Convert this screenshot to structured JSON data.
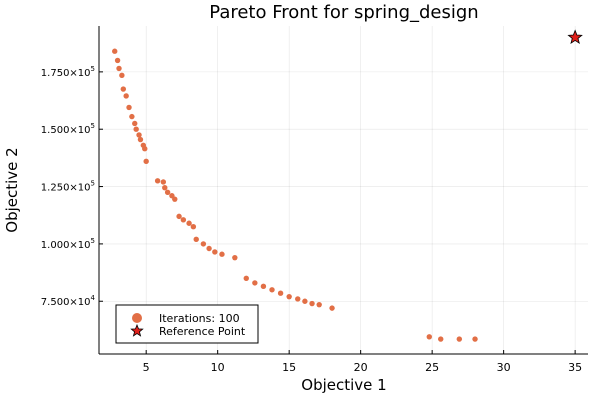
{
  "chart_data": {
    "type": "scatter",
    "title": "Pareto Front for spring_design",
    "xlabel": "Objective 1",
    "ylabel": "Objective 2",
    "xlim": [
      1.7,
      35.9
    ],
    "ylim": [
      52000,
      195000
    ],
    "x_ticks": [
      {
        "value": 5,
        "label": "5"
      },
      {
        "value": 10,
        "label": "10"
      },
      {
        "value": 15,
        "label": "15"
      },
      {
        "value": 20,
        "label": "20"
      },
      {
        "value": 25,
        "label": "25"
      },
      {
        "value": 30,
        "label": "30"
      },
      {
        "value": 35,
        "label": "35"
      }
    ],
    "y_ticks": [
      {
        "value": 75000,
        "mantissa": "7.500×10",
        "exp": "4"
      },
      {
        "value": 100000,
        "mantissa": "1.000×10",
        "exp": "5"
      },
      {
        "value": 125000,
        "mantissa": "1.250×10",
        "exp": "5"
      },
      {
        "value": 150000,
        "mantissa": "1.500×10",
        "exp": "5"
      },
      {
        "value": 175000,
        "mantissa": "1.750×10",
        "exp": "5"
      }
    ],
    "grid": true,
    "legend_position": "bottom-left",
    "series": [
      {
        "name": "Iterations: 100",
        "marker": "circle",
        "color": "#e26f46",
        "points": [
          [
            2.8,
            184000
          ],
          [
            3.0,
            180000
          ],
          [
            3.1,
            176500
          ],
          [
            3.3,
            173500
          ],
          [
            3.4,
            167500
          ],
          [
            3.6,
            164500
          ],
          [
            3.8,
            159500
          ],
          [
            4.0,
            155500
          ],
          [
            4.2,
            152500
          ],
          [
            4.3,
            150000
          ],
          [
            4.5,
            147500
          ],
          [
            4.6,
            145500
          ],
          [
            4.8,
            143000
          ],
          [
            4.9,
            141500
          ],
          [
            5.0,
            136000
          ],
          [
            5.8,
            127500
          ],
          [
            6.2,
            127000
          ],
          [
            6.3,
            124500
          ],
          [
            6.5,
            122500
          ],
          [
            6.8,
            121000
          ],
          [
            7.0,
            119500
          ],
          [
            7.3,
            112000
          ],
          [
            7.6,
            110500
          ],
          [
            8.0,
            109000
          ],
          [
            8.3,
            107500
          ],
          [
            8.5,
            102000
          ],
          [
            9.0,
            100000
          ],
          [
            9.4,
            98000
          ],
          [
            9.8,
            96500
          ],
          [
            10.3,
            95500
          ],
          [
            11.2,
            94000
          ],
          [
            12.0,
            85000
          ],
          [
            12.6,
            83000
          ],
          [
            13.2,
            81500
          ],
          [
            13.8,
            80000
          ],
          [
            14.4,
            78500
          ],
          [
            15.0,
            77000
          ],
          [
            15.6,
            76000
          ],
          [
            16.1,
            75000
          ],
          [
            16.6,
            74000
          ],
          [
            17.1,
            73500
          ],
          [
            18.0,
            72000
          ],
          [
            24.8,
            59500
          ],
          [
            25.6,
            58500
          ],
          [
            26.9,
            58500
          ],
          [
            28.0,
            58500
          ]
        ]
      },
      {
        "name": "Reference Point",
        "marker": "star",
        "color": "#e0201b",
        "points": [
          [
            35,
            190000
          ]
        ]
      }
    ]
  }
}
